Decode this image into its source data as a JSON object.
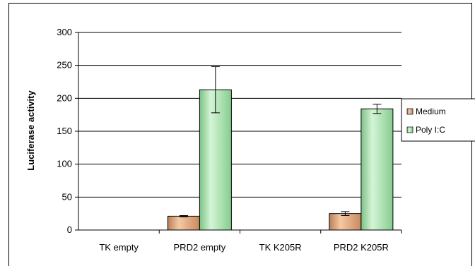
{
  "chart_data": {
    "type": "bar",
    "title": "",
    "xlabel": "",
    "ylabel": "Luciferase activity",
    "ylim": [
      0,
      300
    ],
    "yticks": [
      0,
      50,
      100,
      150,
      200,
      250,
      300
    ],
    "grid": true,
    "legend_position": "right",
    "categories": [
      "TK empty",
      "PRD2 empty",
      "TK K205R",
      "PRD2 K205R"
    ],
    "series": [
      {
        "name": "Medium",
        "color": "#e4a87c",
        "values": [
          0,
          21,
          0,
          25
        ],
        "errors": [
          0,
          1,
          0,
          3
        ]
      },
      {
        "name": "Poly I:C",
        "color": "#9fdca4",
        "values": [
          0,
          213,
          0,
          184
        ],
        "errors": [
          0,
          35,
          0,
          7
        ]
      }
    ]
  }
}
